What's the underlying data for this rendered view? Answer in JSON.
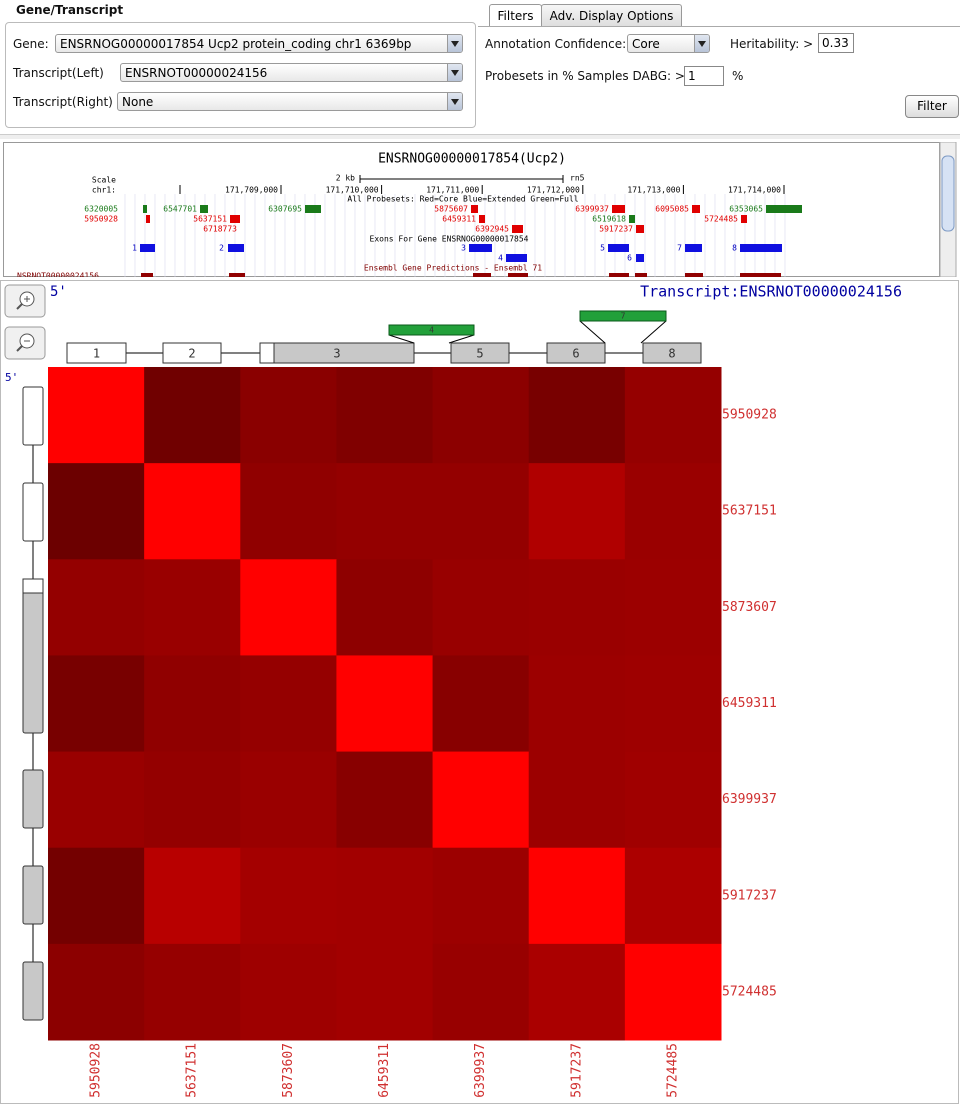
{
  "gene_panel": {
    "title": "Gene/Transcript",
    "gene_label": "Gene:",
    "gene_value": "ENSRNOG00000017854 Ucp2 protein_coding chr1 6369bp",
    "left_label": "Transcript(Left)",
    "left_value": "ENSRNOT00000024156",
    "right_label": "Transcript(Right)",
    "right_value": "None"
  },
  "tabs": [
    "Filters",
    "Adv. Display Options"
  ],
  "filters": {
    "confidence_label": "Annotation Confidence:",
    "confidence_value": "Core",
    "heritability_label": "Heritability: >",
    "heritability_value": "0.33",
    "dabg_label": "Probesets in % Samples DABG: >",
    "dabg_value": "1",
    "dabg_unit": "%",
    "button": "Filter"
  },
  "browser": {
    "title": "ENSRNOG00000017854(Ucp2)",
    "scale_label": "Scale",
    "scale_value": "2 kb",
    "assembly": "rn5",
    "chrom": "chr1:",
    "positions": [
      "171,709,000",
      "171,710,000",
      "171,711,000",
      "171,712,000",
      "171,713,000",
      "171,714,000"
    ],
    "probeset_legend": "All Probesets: Red=Core Blue=Extended Green=Full",
    "probesets": [
      {
        "label": "6320005",
        "color": "#1a7a1a"
      },
      {
        "label": "6547701",
        "color": "#1a7a1a"
      },
      {
        "label": "6307695",
        "color": "#1a7a1a"
      },
      {
        "label": "5875607",
        "color": "#e00000"
      },
      {
        "label": "6399937",
        "color": "#e00000"
      },
      {
        "label": "6095085",
        "color": "#e00000"
      },
      {
        "label": "6353065",
        "color": "#1a7a1a"
      },
      {
        "label": "5950928",
        "color": "#e00000"
      },
      {
        "label": "5637151",
        "color": "#e00000"
      },
      {
        "label": "6459311",
        "color": "#e00000"
      },
      {
        "label": "6519618",
        "color": "#1a7a1a"
      },
      {
        "label": "5724485",
        "color": "#e00000"
      },
      {
        "label": "6718773",
        "color": "#e00000"
      },
      {
        "label": "6392945",
        "color": "#e00000"
      },
      {
        "label": "5917237",
        "color": "#e00000"
      }
    ],
    "exons_title": "Exons For Gene ENSRNOG00000017854",
    "exons": [
      "1",
      "2",
      "3",
      "4",
      "5",
      "6",
      "7",
      "8"
    ],
    "ensembl_title": "Ensembl Gene Predictions - Ensembl 71",
    "track_label": "NSRNOT00000024156"
  },
  "viewer": {
    "five_prime": "5'",
    "transcript": "Transcript:ENSRNOT00000024156",
    "exons": [
      "1",
      "2",
      "3",
      "4",
      "5",
      "6",
      "7",
      "8"
    ],
    "probesets": [
      "5950928",
      "5637151",
      "5873607",
      "6459311",
      "6399937",
      "5917237",
      "5724485"
    ],
    "heatmap_colors": [
      [
        "#ff0000",
        "#700000",
        "#8a0000",
        "#800000",
        "#8c0000",
        "#780000",
        "#950000"
      ],
      [
        "#6c0000",
        "#ff0000",
        "#900000",
        "#940000",
        "#940000",
        "#b00000",
        "#9a0000"
      ],
      [
        "#940000",
        "#990000",
        "#ff0000",
        "#8e0000",
        "#980000",
        "#9a0000",
        "#9c0000"
      ],
      [
        "#780000",
        "#900000",
        "#950000",
        "#ff0000",
        "#880000",
        "#9c0000",
        "#9e0000"
      ],
      [
        "#990000",
        "#940000",
        "#9a0000",
        "#880000",
        "#ff0000",
        "#9c0000",
        "#a00000"
      ],
      [
        "#740000",
        "#b80000",
        "#a40000",
        "#a20000",
        "#9c0000",
        "#ff0000",
        "#ac0000"
      ],
      [
        "#8c0000",
        "#960000",
        "#9e0000",
        "#a20000",
        "#980000",
        "#aa0000",
        "#ff0000"
      ]
    ]
  }
}
